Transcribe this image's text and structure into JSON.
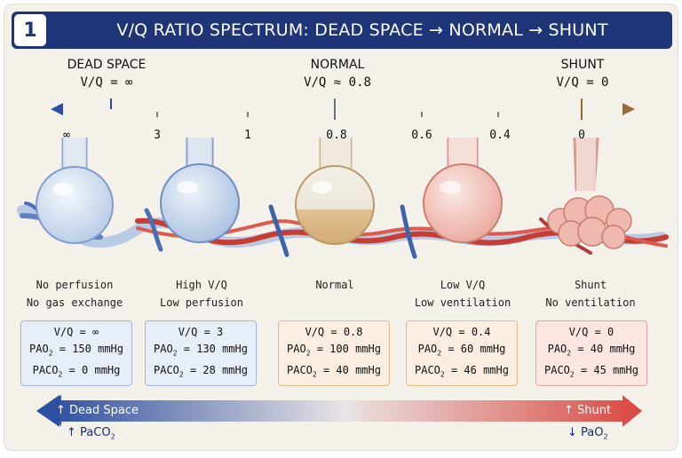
{
  "header": {
    "badge_number": "1",
    "title": "V/Q RATIO SPECTRUM: DEAD SPACE → NORMAL → SHUNT"
  },
  "scale": {
    "left": {
      "title": "DEAD SPACE",
      "value": "V/Q = ∞"
    },
    "center": {
      "title": "NORMAL",
      "value": "V/Q ≈ 0.8"
    },
    "right": {
      "title": "SHUNT",
      "value": "V/Q = 0"
    },
    "ticks": [
      "∞",
      "3",
      "1",
      "0.8",
      "0.6",
      "0.4",
      "0"
    ]
  },
  "units": [
    {
      "caption": [
        "No perfusion",
        "No gas exchange"
      ],
      "vq": "V/Q = ∞",
      "pao2": {
        "label": "PAO",
        "sub": "2",
        "value": " = 150 mmHg"
      },
      "paco2": {
        "label": "PACO",
        "sub": "2",
        "value": " = 0 mmHg"
      }
    },
    {
      "caption": [
        "High V/Q",
        "Low perfusion"
      ],
      "vq": "V/Q = 3",
      "pao2": {
        "label": "PAO",
        "sub": "2",
        "value": " = 130 mmHg"
      },
      "paco2": {
        "label": "PACO",
        "sub": "2",
        "value": " = 28 mmHg"
      }
    },
    {
      "caption": [
        "Normal",
        ""
      ],
      "vq": "V/Q = 0.8",
      "pao2": {
        "label": "PAO",
        "sub": "2",
        "value": " = 100 mmHg"
      },
      "paco2": {
        "label": "PACO",
        "sub": "2",
        "value": " = 40 mmHg"
      }
    },
    {
      "caption": [
        "Low V/Q",
        "Low ventilation"
      ],
      "vq": "V/Q = 0.4",
      "pao2": {
        "label": "PAO",
        "sub": "2",
        "value": " = 60 mmHg"
      },
      "paco2": {
        "label": "PACO",
        "sub": "2",
        "value": " = 46 mmHg"
      }
    },
    {
      "caption": [
        "Shunt",
        "No ventilation"
      ],
      "vq": "V/Q = 0",
      "pao2": {
        "label": "PAO",
        "sub": "2",
        "value": " = 40 mmHg"
      },
      "paco2": {
        "label": "PACO",
        "sub": "2",
        "value": " = 45 mmHg"
      }
    }
  ],
  "bottom": {
    "left_label": "↑ Dead Space",
    "right_label": "↑ Shunt",
    "left_sub": {
      "label": "↑ PaCO",
      "sub": "2"
    },
    "right_sub": {
      "label": "↓ PaO",
      "sub": "2"
    }
  },
  "colors": {
    "header_bg": "#1f3577",
    "dead_space_blue": "#2d4fa0",
    "shunt_red": "#d9473f",
    "normal_tan": "#d9b985",
    "card_blue": "#e8eef8",
    "card_peach": "#fbeee0",
    "card_pink": "#fbe6e2"
  }
}
